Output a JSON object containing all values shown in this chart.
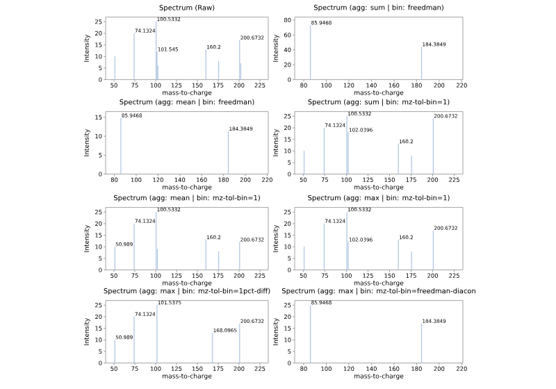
{
  "chart_data": [
    {
      "type": "bar",
      "title": "Spectrum (Raw)",
      "xlabel": "mass-to-charge",
      "ylabel": "Intensity",
      "color": "#a9c1e0",
      "x": [
        50.989,
        74.1324,
        100.5332,
        101.545,
        102.7,
        160.2,
        175.5,
        200.6732,
        201.9
      ],
      "values": [
        10,
        20,
        25,
        12,
        6,
        13,
        8,
        17,
        7
      ],
      "xlim": [
        40,
        235
      ],
      "xticks": [
        50,
        75,
        100,
        125,
        150,
        175,
        200,
        225
      ],
      "ylim": [
        0,
        27
      ],
      "yticks": [
        0,
        5,
        10,
        15,
        20,
        25
      ],
      "annotations": [
        {
          "text": "74.1324",
          "x": 74.1324,
          "y": 20
        },
        {
          "text": "100.5332",
          "x": 100.5332,
          "y": 25
        },
        {
          "text": "101.545",
          "x": 101.545,
          "y": 12
        },
        {
          "text": "160.2",
          "x": 160.2,
          "y": 13
        },
        {
          "text": "200.6732",
          "x": 200.6732,
          "y": 17
        }
      ]
    },
    {
      "type": "bar",
      "title": "Spectrum (agg: sum | bin: freedman)",
      "xlabel": "mass-to-charge",
      "ylabel": "Intensity",
      "color": "#a9c1e0",
      "x": [
        85.9468,
        184.3849
      ],
      "values": [
        73,
        44
      ],
      "xlim": [
        72,
        221
      ],
      "xticks": [
        80,
        100,
        120,
        140,
        160,
        180,
        200,
        220
      ],
      "ylim": [
        0,
        84
      ],
      "yticks": [
        0,
        20,
        40,
        60,
        80
      ],
      "annotations": [
        {
          "text": "85.9468",
          "x": 85.9468,
          "y": 73
        },
        {
          "text": "184.3849",
          "x": 184.3849,
          "y": 44
        }
      ]
    },
    {
      "type": "bar",
      "title": "Spectrum (agg: mean | bin: freedman)",
      "xlabel": "mass-to-charge",
      "ylabel": "Intensity",
      "color": "#a9c1e0",
      "x": [
        85.9468,
        184.3849
      ],
      "values": [
        14.8,
        11.3
      ],
      "xlim": [
        72,
        221
      ],
      "xticks": [
        80,
        100,
        120,
        140,
        160,
        180,
        200,
        220
      ],
      "ylim": [
        0,
        16.5
      ],
      "yticks": [
        0,
        5,
        10,
        15
      ],
      "annotations": [
        {
          "text": "85.9468",
          "x": 85.9468,
          "y": 14.8
        },
        {
          "text": "184.3849",
          "x": 184.3849,
          "y": 11.3
        }
      ]
    },
    {
      "type": "bar",
      "title": "Spectrum (agg: sum | bin: mz-tol-bin=1)",
      "xlabel": "mass-to-charge",
      "ylabel": "Intensity",
      "color": "#a9c1e0",
      "x": [
        50.989,
        74.1324,
        100.5332,
        102.0396,
        160.2,
        175.5,
        200.6732
      ],
      "values": [
        10,
        20,
        25,
        18,
        13,
        8,
        24
      ],
      "xlim": [
        40,
        235
      ],
      "xticks": [
        50,
        75,
        100,
        125,
        150,
        175,
        200,
        225
      ],
      "ylim": [
        0,
        27
      ],
      "yticks": [
        0,
        5,
        10,
        15,
        20,
        25
      ],
      "annotations": [
        {
          "text": "74.1324",
          "x": 74.1324,
          "y": 20
        },
        {
          "text": "100.5332",
          "x": 100.5332,
          "y": 25
        },
        {
          "text": "102.0396",
          "x": 102.0396,
          "y": 18
        },
        {
          "text": "160.2",
          "x": 160.2,
          "y": 13
        },
        {
          "text": "200.6732",
          "x": 200.6732,
          "y": 24
        }
      ]
    },
    {
      "type": "bar",
      "title": "Spectrum (agg: mean | bin: mz-tol-bin=1)",
      "xlabel": "mass-to-charge",
      "ylabel": "Intensity",
      "color": "#a9c1e0",
      "x": [
        50.989,
        74.1324,
        100.5332,
        102.0396,
        160.2,
        175.5,
        200.6732
      ],
      "values": [
        10,
        20,
        25,
        9,
        13,
        8,
        12
      ],
      "xlim": [
        40,
        235
      ],
      "xticks": [
        50,
        75,
        100,
        125,
        150,
        175,
        200,
        225
      ],
      "ylim": [
        0,
        27
      ],
      "yticks": [
        0,
        5,
        10,
        15,
        20,
        25
      ],
      "annotations": [
        {
          "text": "50.989",
          "x": 50.989,
          "y": 10
        },
        {
          "text": "74.1324",
          "x": 74.1324,
          "y": 20
        },
        {
          "text": "100.5332",
          "x": 100.5332,
          "y": 25
        },
        {
          "text": "160.2",
          "x": 160.2,
          "y": 13
        },
        {
          "text": "200.6732",
          "x": 200.6732,
          "y": 12
        }
      ]
    },
    {
      "type": "bar",
      "title": "Spectrum (agg: max | bin: mz-tol-bin=1)",
      "xlabel": "mass-to-charge",
      "ylabel": "Intensity",
      "color": "#a9c1e0",
      "x": [
        50.989,
        74.1324,
        100.5332,
        102.0396,
        160.2,
        175.5,
        200.6732
      ],
      "values": [
        10,
        20,
        25,
        12,
        13,
        8,
        17
      ],
      "xlim": [
        40,
        235
      ],
      "xticks": [
        50,
        75,
        100,
        125,
        150,
        175,
        200,
        225
      ],
      "ylim": [
        0,
        27
      ],
      "yticks": [
        0,
        5,
        10,
        15,
        20,
        25
      ],
      "annotations": [
        {
          "text": "74.1324",
          "x": 74.1324,
          "y": 20
        },
        {
          "text": "100.5332",
          "x": 100.5332,
          "y": 25
        },
        {
          "text": "102.0396",
          "x": 102.0396,
          "y": 12
        },
        {
          "text": "160.2",
          "x": 160.2,
          "y": 13
        },
        {
          "text": "200.6732",
          "x": 200.6732,
          "y": 17
        }
      ]
    },
    {
      "type": "bar",
      "title": "Spectrum (agg: max | bin: mz-tol-bin=1pct-diff)",
      "xlabel": "mass-to-charge",
      "ylabel": "Intensity",
      "color": "#a9c1e0",
      "x": [
        50.989,
        74.1324,
        101.5375,
        168.0965,
        200.6732
      ],
      "values": [
        10,
        20,
        25,
        13,
        17
      ],
      "xlim": [
        40,
        235
      ],
      "xticks": [
        50,
        75,
        100,
        125,
        150,
        175,
        200,
        225
      ],
      "ylim": [
        0,
        27
      ],
      "yticks": [
        0,
        5,
        10,
        15,
        20,
        25
      ],
      "annotations": [
        {
          "text": "50.989",
          "x": 50.989,
          "y": 10
        },
        {
          "text": "74.1324",
          "x": 74.1324,
          "y": 20
        },
        {
          "text": "101.5375",
          "x": 101.5375,
          "y": 25
        },
        {
          "text": "168.0965",
          "x": 168.0965,
          "y": 13
        },
        {
          "text": "200.6732",
          "x": 200.6732,
          "y": 17
        }
      ]
    },
    {
      "type": "bar",
      "title": "Spectrum (agg: max | bin: mz-tol-bin=freedman-diacon",
      "xlabel": "mass-to-charge",
      "ylabel": "Intensity",
      "color": "#a9c1e0",
      "x": [
        85.9468,
        184.3849
      ],
      "values": [
        25,
        17
      ],
      "xlim": [
        72,
        221
      ],
      "xticks": [
        80,
        100,
        120,
        140,
        160,
        180,
        200,
        220
      ],
      "ylim": [
        0,
        27
      ],
      "yticks": [
        0,
        5,
        10,
        15,
        20,
        25
      ],
      "annotations": [
        {
          "text": "85.9468",
          "x": 85.9468,
          "y": 25
        },
        {
          "text": "184.3849",
          "x": 184.3849,
          "y": 17
        }
      ]
    }
  ]
}
